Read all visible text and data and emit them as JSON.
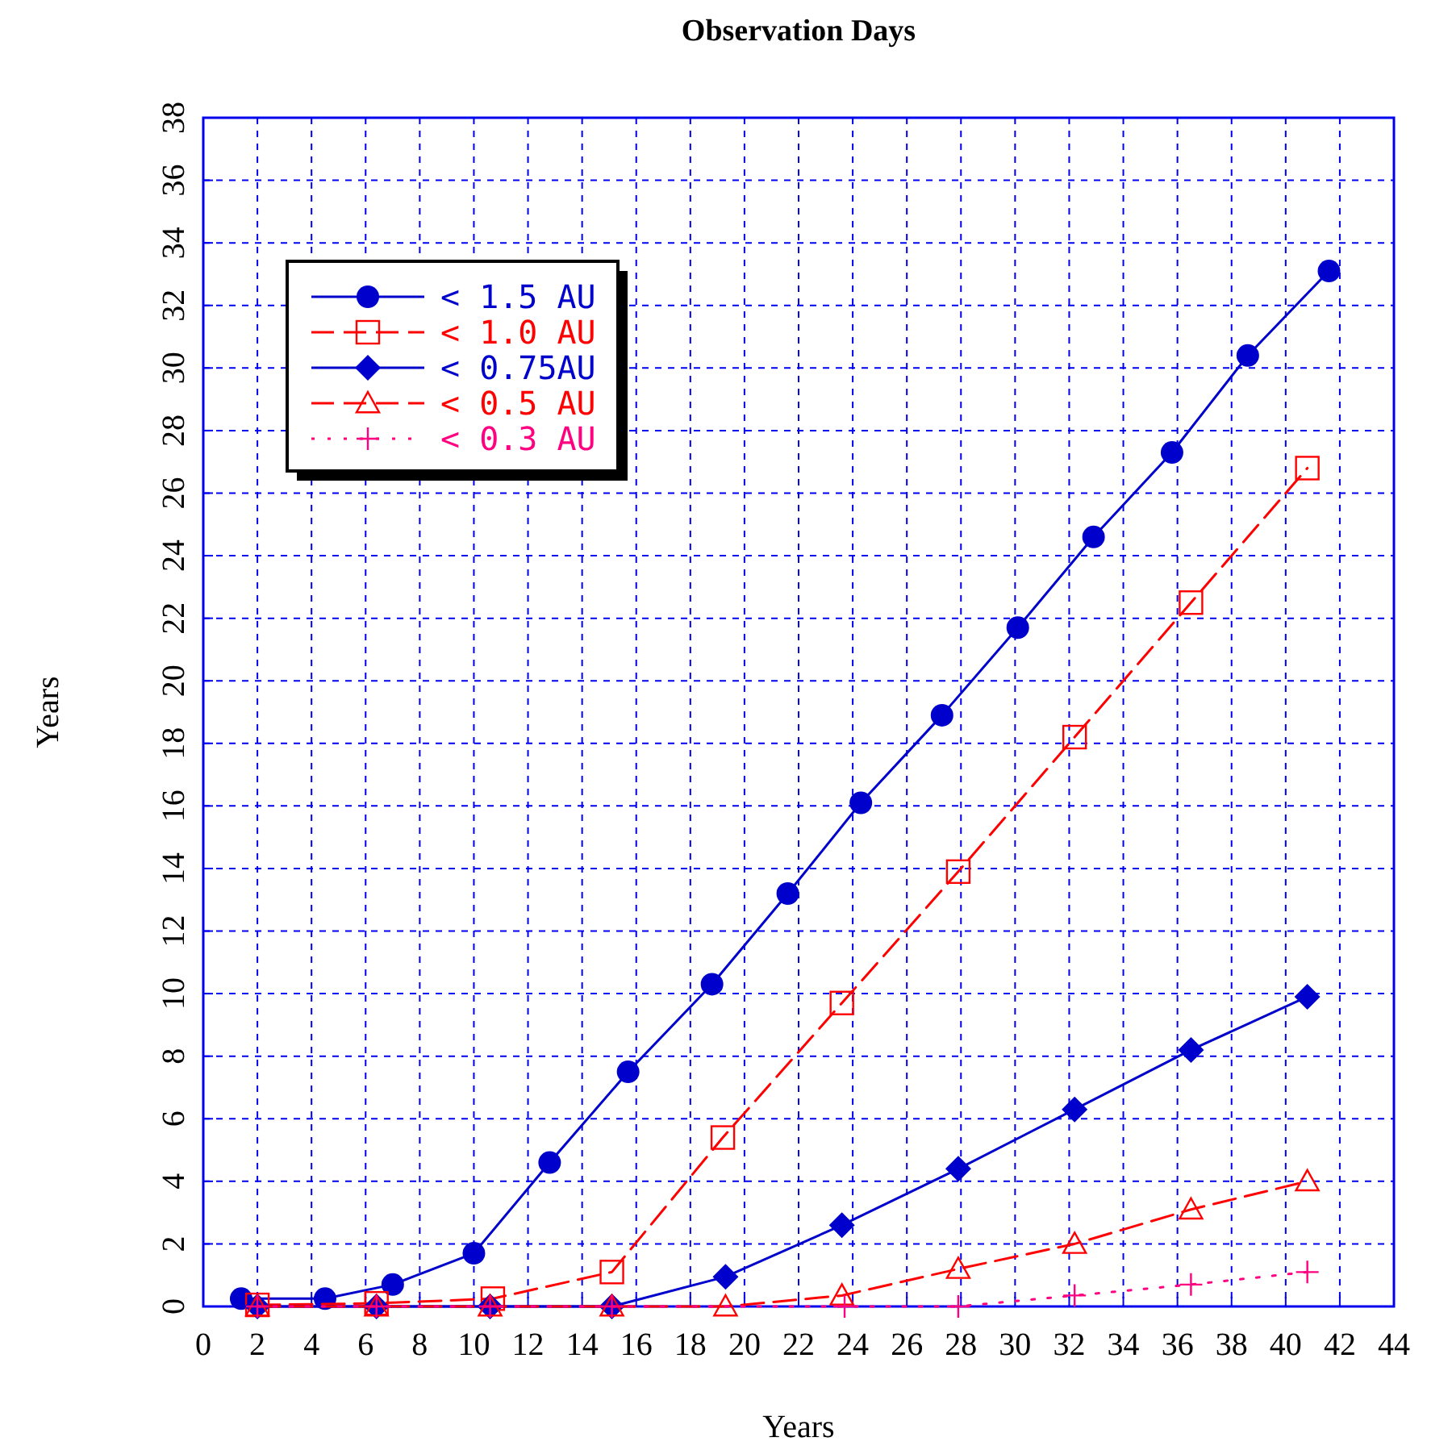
{
  "chart_data": {
    "type": "line",
    "title": "Observation Days",
    "xlabel": "Years",
    "ylabel": "Years",
    "xlim": [
      0,
      44
    ],
    "ylim": [
      0,
      38
    ],
    "xticks": [
      0,
      2,
      4,
      6,
      8,
      10,
      12,
      14,
      16,
      18,
      20,
      22,
      24,
      26,
      28,
      30,
      32,
      34,
      36,
      38,
      40,
      42,
      44
    ],
    "yticks": [
      0,
      2,
      4,
      6,
      8,
      10,
      12,
      14,
      16,
      18,
      20,
      22,
      24,
      26,
      28,
      30,
      32,
      34,
      36,
      38
    ],
    "grid": true,
    "legend": "top left",
    "series": [
      {
        "name": "< 1.5 AU",
        "color": "#0000cc",
        "marker": "circle",
        "line_style": "solid",
        "x": [
          1.4,
          4.5,
          7.0,
          10.0,
          12.8,
          15.7,
          18.8,
          21.6,
          24.3,
          27.3,
          30.1,
          32.9,
          35.8,
          38.6,
          41.6
        ],
        "values": [
          0.25,
          0.25,
          0.7,
          1.7,
          4.6,
          7.5,
          10.3,
          13.2,
          16.1,
          18.9,
          21.7,
          24.6,
          27.3,
          30.4,
          33.1
        ]
      },
      {
        "name": "< 1.0 AU",
        "color": "#ff0000",
        "marker": "square",
        "line_style": "dashed",
        "x": [
          2.0,
          6.4,
          10.7,
          15.1,
          19.2,
          23.6,
          27.9,
          32.2,
          36.5,
          40.8
        ],
        "values": [
          0.05,
          0.1,
          0.25,
          1.1,
          5.4,
          9.7,
          13.9,
          18.2,
          22.5,
          26.8
        ]
      },
      {
        "name": "< 0.75AU",
        "color": "#0000cc",
        "marker": "diamond",
        "line_style": "solid",
        "x": [
          2.0,
          6.4,
          10.6,
          15.1,
          19.3,
          23.6,
          27.9,
          32.2,
          36.5,
          40.8
        ],
        "values": [
          0,
          0,
          0,
          0,
          0.95,
          2.6,
          4.4,
          6.3,
          8.2,
          9.9
        ]
      },
      {
        "name": "< 0.5 AU",
        "color": "#ff0000",
        "marker": "triangle",
        "line_style": "dashed",
        "x": [
          2.0,
          6.4,
          10.6,
          15.1,
          19.3,
          23.6,
          27.9,
          32.2,
          36.5,
          40.8
        ],
        "values": [
          0,
          0,
          0,
          0,
          0,
          0.35,
          1.2,
          2.0,
          3.1,
          4.0
        ]
      },
      {
        "name": "< 0.3 AU",
        "color": "#ff0080",
        "marker": "cross",
        "line_style": "dotted",
        "x": [
          2.0,
          6.4,
          10.6,
          15.1,
          23.7,
          27.9,
          32.2,
          36.5,
          40.8
        ],
        "values": [
          0,
          0,
          0,
          0,
          0,
          0,
          0.35,
          0.7,
          1.1
        ]
      }
    ]
  }
}
